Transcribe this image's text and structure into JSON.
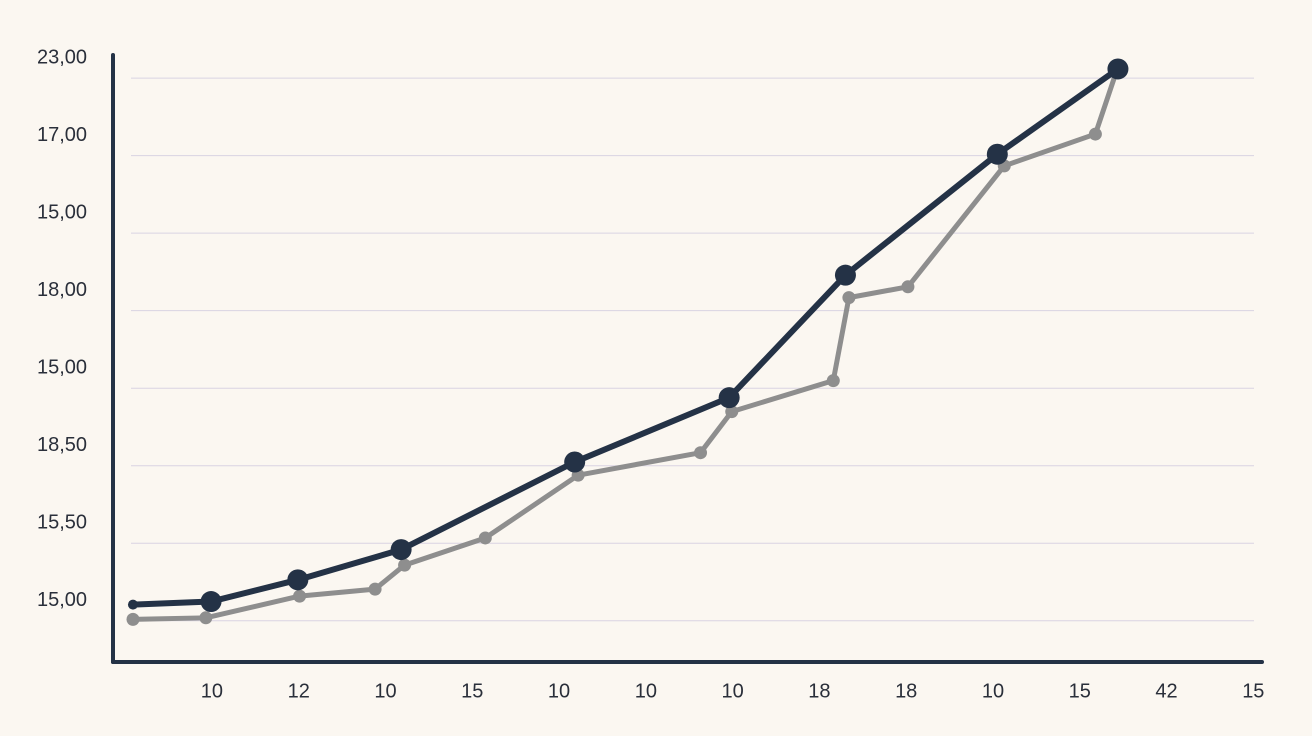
{
  "chart_data": {
    "type": "line",
    "xlim": [
      -1.14,
      12.1
    ],
    "xticks": [
      {
        "value": 0,
        "label": "10"
      },
      {
        "value": 1,
        "label": "12"
      },
      {
        "value": 2,
        "label": "10"
      },
      {
        "value": 3,
        "label": "15"
      },
      {
        "value": 4,
        "label": "10"
      },
      {
        "value": 5,
        "label": "10"
      },
      {
        "value": 6,
        "label": "10"
      },
      {
        "value": 7,
        "label": "18"
      },
      {
        "value": 8,
        "label": "18"
      },
      {
        "value": 9,
        "label": "10"
      },
      {
        "value": 10,
        "label": "15"
      },
      {
        "value": 11,
        "label": "42"
      },
      {
        "value": 12,
        "label": "15"
      }
    ],
    "ylim": [
      -0.79,
      7.04
    ],
    "yticks": [
      {
        "value": 0,
        "label": "15,00"
      },
      {
        "value": 1,
        "label": "15,50"
      },
      {
        "value": 2,
        "label": "18,50"
      },
      {
        "value": 3,
        "label": "15,00"
      },
      {
        "value": 4,
        "label": "18,00"
      },
      {
        "value": 5,
        "label": "15,00"
      },
      {
        "value": 6,
        "label": "17,00"
      },
      {
        "value": 7,
        "label": "23,00"
      }
    ],
    "grid": true,
    "series": [
      {
        "color": "#8e8e8e",
        "x": [
          -0.91,
          -0.07,
          1.01,
          1.88,
          2.22,
          3.15,
          4.22,
          5.63,
          5.99,
          7.16,
          7.34,
          8.02,
          9.13,
          10.18,
          10.42
        ],
        "values": [
          -0.24,
          -0.22,
          0.06,
          0.15,
          0.46,
          0.81,
          1.62,
          1.91,
          2.44,
          2.84,
          3.91,
          4.05,
          5.61,
          6.02,
          6.82
        ]
      },
      {
        "color": "#243246",
        "x": [
          -0.91,
          -0.01,
          0.99,
          2.18,
          4.18,
          5.96,
          7.3,
          9.05,
          10.44
        ],
        "values": [
          -0.05,
          -0.01,
          0.27,
          0.66,
          1.79,
          2.62,
          4.2,
          5.76,
          6.86
        ]
      }
    ]
  }
}
